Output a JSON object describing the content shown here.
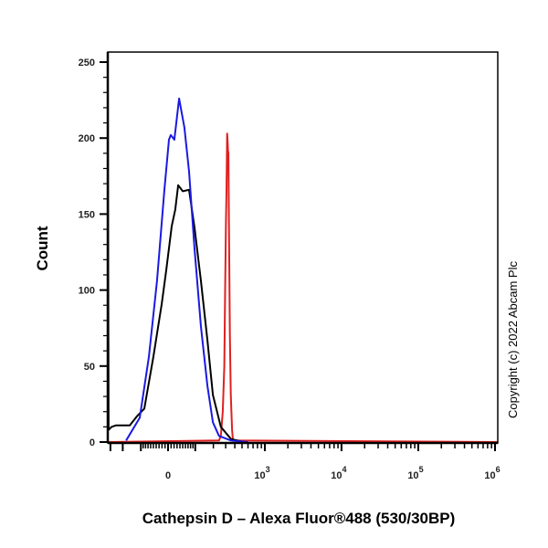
{
  "chart_data": {
    "type": "line",
    "title": "",
    "xlabel": "Cathepsin D – Alexa Fluor®488 (530/30BP)",
    "ylabel": "Count",
    "x_scale": "biexponential",
    "xlim": [
      -326,
      1200000
    ],
    "ylim": [
      0,
      250
    ],
    "x_tick_labels": [
      {
        "value": 0,
        "base": "0",
        "exp": ""
      },
      {
        "value": 1000,
        "base": "10",
        "exp": "3"
      },
      {
        "value": 10000,
        "base": "10",
        "exp": "4"
      },
      {
        "value": 100000,
        "base": "10",
        "exp": "5"
      },
      {
        "value": 1000000,
        "base": "10",
        "exp": "6"
      }
    ],
    "y_ticks": [
      0,
      50,
      100,
      150,
      200,
      250
    ],
    "grid": false,
    "legend": "none",
    "annotation": "Copyright (c) 2022 Abcam Plc",
    "series": [
      {
        "color": "#e02020",
        "x": [
          -326,
          242,
          257,
          273,
          287,
          295,
          303,
          308,
          314,
          320,
          323,
          327,
          333,
          343,
          353,
          367,
          378,
          1200000
        ],
        "x_values_note_units": "fluorescence intensity",
        "y": [
          0,
          1,
          4,
          20,
          50,
          100,
          145,
          166,
          203,
          197,
          192,
          190,
          141,
          70,
          31,
          8,
          1,
          0
        ]
      },
      {
        "color": "#000000",
        "x": [
          -326,
          -318,
          -290,
          -250,
          -156,
          -118,
          -85,
          -50,
          -21,
          -6,
          12,
          24,
          34,
          50,
          74,
          97,
          127,
          162,
          197,
          257,
          355,
          529
        ],
        "y": [
          250,
          8,
          10,
          11,
          11,
          17,
          22,
          56,
          91,
          113,
          142,
          153,
          169,
          165,
          166,
          141,
          106,
          67,
          31,
          10,
          2,
          0
        ]
      },
      {
        "color": "#1a1ae0",
        "x": [
          -178,
          -105,
          -67,
          -37,
          -12,
          3,
          9,
          21,
          37,
          56,
          74,
          97,
          127,
          162,
          197,
          242,
          355,
          600
        ],
        "y": [
          1,
          16,
          56,
          106,
          166,
          199,
          202,
          199,
          226,
          207,
          178,
          127,
          76,
          37,
          13,
          4,
          1,
          0
        ]
      }
    ]
  }
}
